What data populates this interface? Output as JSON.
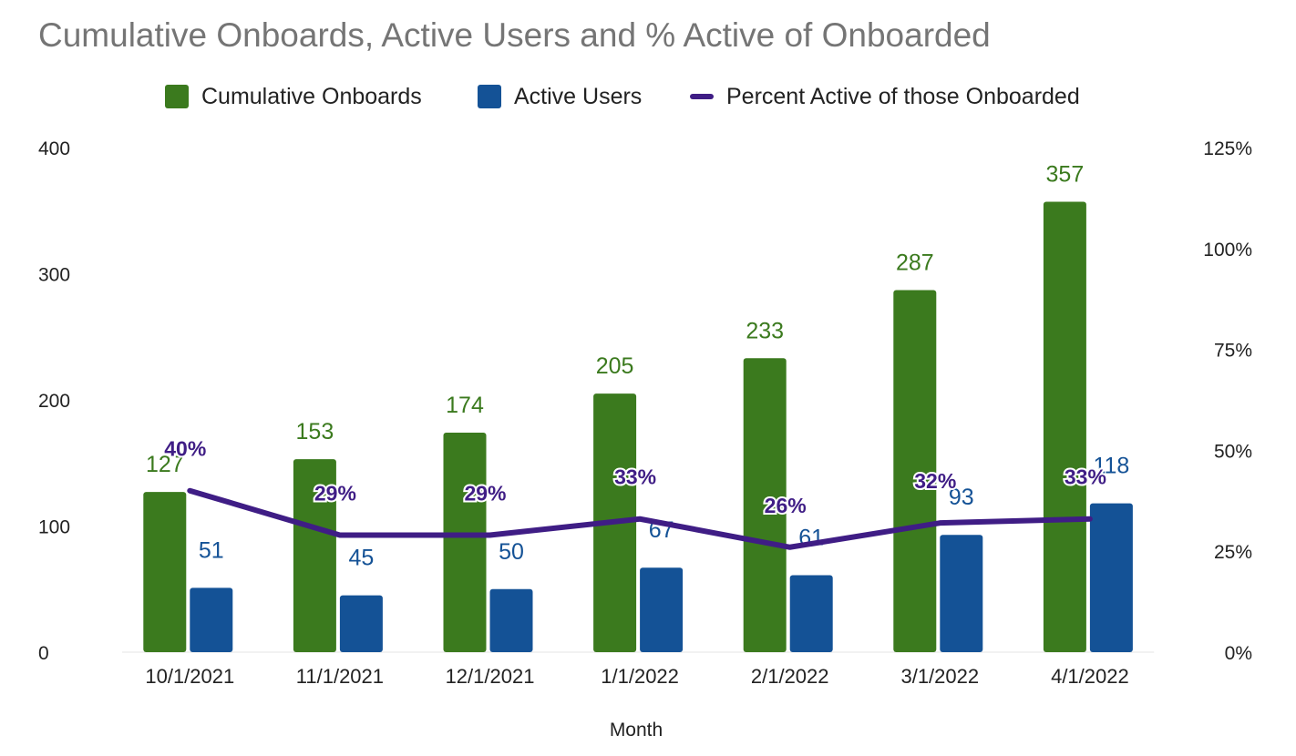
{
  "title": "Cumulative Onboards, Active Users and % Active of Onboarded",
  "legend": {
    "items": [
      {
        "label": "Cumulative Onboards",
        "shape": "square",
        "color": "#3b7a1e"
      },
      {
        "label": "Active Users",
        "shape": "square",
        "color": "#145296"
      },
      {
        "label": "Percent Active of those Onboarded",
        "shape": "line",
        "color": "#3f1d85"
      }
    ]
  },
  "chart_data": {
    "type": "bar",
    "title": "Cumulative Onboards, Active Users and % Active of Onboarded",
    "xlabel": "Month",
    "ylabel": "",
    "categories": [
      "10/1/2021",
      "11/1/2021",
      "12/1/2021",
      "1/1/2022",
      "2/1/2022",
      "3/1/2022",
      "4/1/2022"
    ],
    "ylim": [
      0,
      400
    ],
    "yticks": [
      "0",
      "100",
      "200",
      "300",
      "400"
    ],
    "y2lim": [
      0,
      125
    ],
    "y2ticks": [
      "0%",
      "25%",
      "50%",
      "75%",
      "100%",
      "125%"
    ],
    "series": [
      {
        "name": "Cumulative Onboards",
        "type": "bar",
        "axis": "left",
        "color": "#3b7a1e",
        "values": [
          127,
          153,
          174,
          205,
          233,
          287,
          357
        ],
        "labels": [
          "127",
          "153",
          "174",
          "205",
          "233",
          "287",
          "357"
        ]
      },
      {
        "name": "Active Users",
        "type": "bar",
        "axis": "left",
        "color": "#145296",
        "values": [
          51,
          45,
          50,
          67,
          61,
          93,
          118
        ],
        "labels": [
          "51",
          "45",
          "50",
          "67",
          "61",
          "93",
          "118"
        ]
      },
      {
        "name": "Percent Active of those Onboarded",
        "type": "line",
        "axis": "right",
        "color": "#3f1d85",
        "values": [
          40,
          29,
          29,
          33,
          26,
          32,
          33
        ],
        "labels": [
          "40%",
          "29%",
          "29%",
          "33%",
          "26%",
          "32%",
          "33%"
        ]
      }
    ],
    "grid": false,
    "legend_position": "top"
  }
}
